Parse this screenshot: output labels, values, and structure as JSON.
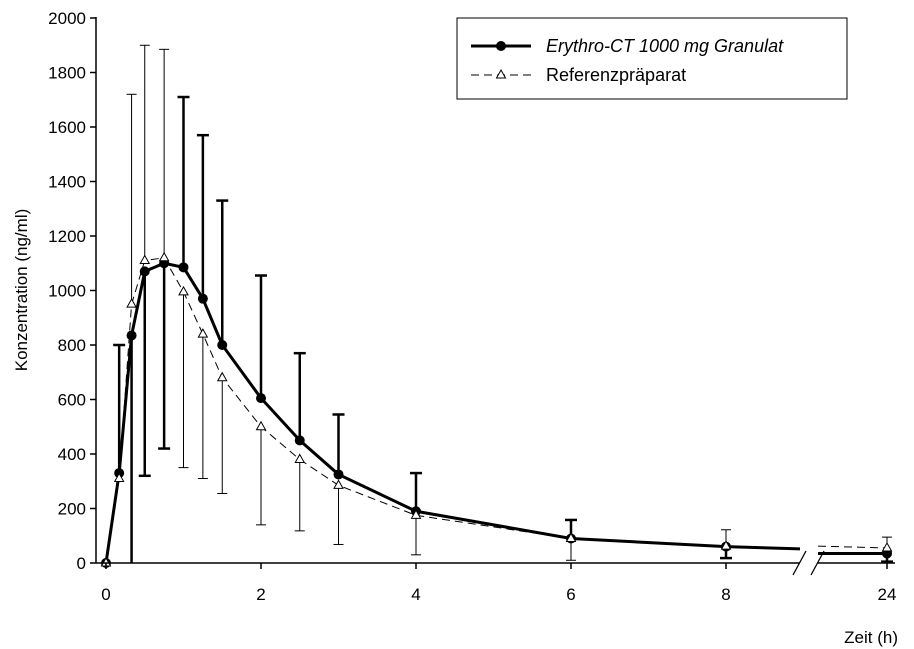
{
  "chart_data": {
    "type": "line",
    "title": "",
    "ylabel": "Konzentration (ng/ml)",
    "xlabel": "Zeit (h)",
    "ylim": [
      0,
      2000
    ],
    "yticks": [
      0,
      200,
      400,
      600,
      800,
      1000,
      1200,
      1400,
      1600,
      1800,
      2000
    ],
    "xticks": [
      0,
      2,
      4,
      6,
      8,
      24
    ],
    "x_axis_break": "between 8 and 24",
    "grid": false,
    "legend_position": "top-right",
    "series": [
      {
        "name": "Erythro-CT 1000 mg Granulat",
        "style": "solid-thick",
        "marker": "filled-circle",
        "color": "#000000",
        "x": [
          0,
          0.17,
          0.33,
          0.5,
          0.75,
          1,
          1.25,
          1.5,
          2,
          2.5,
          3,
          4,
          6,
          8,
          24
        ],
        "y": [
          0,
          330,
          835,
          1070,
          1100,
          1085,
          970,
          800,
          605,
          450,
          325,
          190,
          90,
          60,
          35
        ],
        "error_upper": [
          0,
          800,
          0,
          0,
          0,
          1710,
          1570,
          1330,
          1055,
          770,
          545,
          330,
          158,
          0,
          0
        ],
        "error_lower": [
          0,
          0,
          0,
          320,
          420,
          0,
          0,
          0,
          0,
          0,
          0,
          0,
          0,
          18,
          5
        ],
        "error_lower_offscale": [
          false,
          false,
          true,
          false,
          false,
          false,
          false,
          false,
          false,
          false,
          false,
          false,
          false,
          false,
          false
        ]
      },
      {
        "name": "Referenzpräparat",
        "style": "dashed-thin",
        "marker": "open-triangle",
        "color": "#000000",
        "x": [
          0,
          0.17,
          0.33,
          0.5,
          0.75,
          1,
          1.25,
          1.5,
          2,
          2.5,
          3,
          4,
          6,
          8,
          24
        ],
        "y": [
          0,
          310,
          950,
          1110,
          1120,
          995,
          840,
          680,
          500,
          380,
          285,
          175,
          90,
          62,
          55
        ],
        "error_upper": [
          0,
          0,
          1720,
          1900,
          1885,
          0,
          0,
          0,
          0,
          0,
          0,
          0,
          0,
          122,
          95
        ],
        "error_lower": [
          0,
          0,
          0,
          0,
          0,
          350,
          310,
          255,
          140,
          118,
          68,
          30,
          10,
          0,
          0
        ]
      }
    ]
  }
}
